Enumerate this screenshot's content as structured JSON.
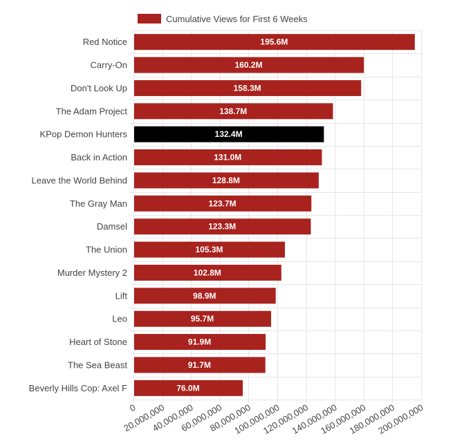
{
  "chart_data": {
    "type": "bar",
    "orientation": "horizontal",
    "categories": [
      "Red Notice",
      "Carry-On",
      "Don't Look Up",
      "The Adam Project",
      "KPop Demon Hunters",
      "Back in Action",
      "Leave the World Behind",
      "The Gray Man",
      "Damsel",
      "The Union",
      "Murder Mystery 2",
      "Lift",
      "Leo",
      "Heart of Stone",
      "The Sea Beast",
      "Beverly Hills Cop: Axel F"
    ],
    "series": [
      {
        "name": "Cumulative Views for First 6 Weeks",
        "color": "#a8221e",
        "values": [
          195600000,
          160200000,
          158300000,
          138700000,
          132400000,
          131000000,
          128800000,
          123700000,
          123300000,
          105300000,
          102800000,
          98900000,
          95700000,
          91900000,
          91700000,
          76000000
        ],
        "data_labels": [
          "195.6M",
          "160.2M",
          "158.3M",
          "138.7M",
          "132.4M",
          "131.0M",
          "128.8M",
          "123.7M",
          "123.3M",
          "105.3M",
          "102.8M",
          "98.9M",
          "95.7M",
          "91.9M",
          "91.7M",
          "76.0M"
        ]
      }
    ],
    "highlight": {
      "category": "KPop Demon Hunters",
      "color": "#000000"
    },
    "xlim": [
      0,
      200000000
    ],
    "x_ticks": [
      0,
      20000000,
      40000000,
      60000000,
      80000000,
      100000000,
      120000000,
      140000000,
      160000000,
      180000000,
      200000000
    ],
    "x_tick_labels": [
      "0",
      "20,000,000",
      "40,000,000",
      "60,000,000",
      "80,000,000",
      "100,000,000",
      "120,000,000",
      "140,000,000",
      "160,000,000",
      "180,000,000",
      "200,000,000"
    ],
    "title": "",
    "xlabel": "",
    "ylabel": "",
    "grid": true,
    "legend": {
      "position": "top",
      "label": "Cumulative Views for First 6 Weeks"
    }
  }
}
